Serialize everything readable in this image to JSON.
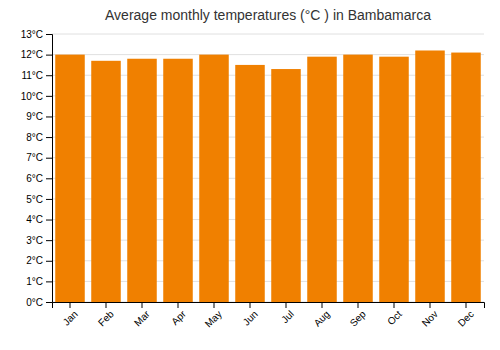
{
  "chart_data": {
    "type": "bar",
    "title": "Average monthly temperatures (°C ) in Bambamarca",
    "categories": [
      "Jan",
      "Feb",
      "Mar",
      "Apr",
      "May",
      "Jun",
      "Jul",
      "Aug",
      "Sep",
      "Oct",
      "Nov",
      "Dec"
    ],
    "values": [
      12.0,
      11.7,
      11.8,
      11.8,
      12.0,
      11.5,
      11.3,
      11.9,
      12.0,
      11.9,
      12.2,
      12.1
    ],
    "color": "#F08000",
    "ylim": [
      0,
      13
    ],
    "yticks": [
      {
        "value": 0,
        "label": "0°C"
      },
      {
        "value": 1,
        "label": "1°C"
      },
      {
        "value": 2,
        "label": "2°C"
      },
      {
        "value": 3,
        "label": "3°C"
      },
      {
        "value": 4,
        "label": "4°C"
      },
      {
        "value": 5,
        "label": "5°C"
      },
      {
        "value": 6,
        "label": "6°C"
      },
      {
        "value": 7,
        "label": "7°C"
      },
      {
        "value": 8,
        "label": "8°C"
      },
      {
        "value": 9,
        "label": "9°C"
      },
      {
        "value": 10,
        "label": "10°C"
      },
      {
        "value": 11,
        "label": "11°C"
      },
      {
        "value": 12,
        "label": "12°C"
      },
      {
        "value": 13,
        "label": "13°C"
      }
    ],
    "grid": true
  }
}
